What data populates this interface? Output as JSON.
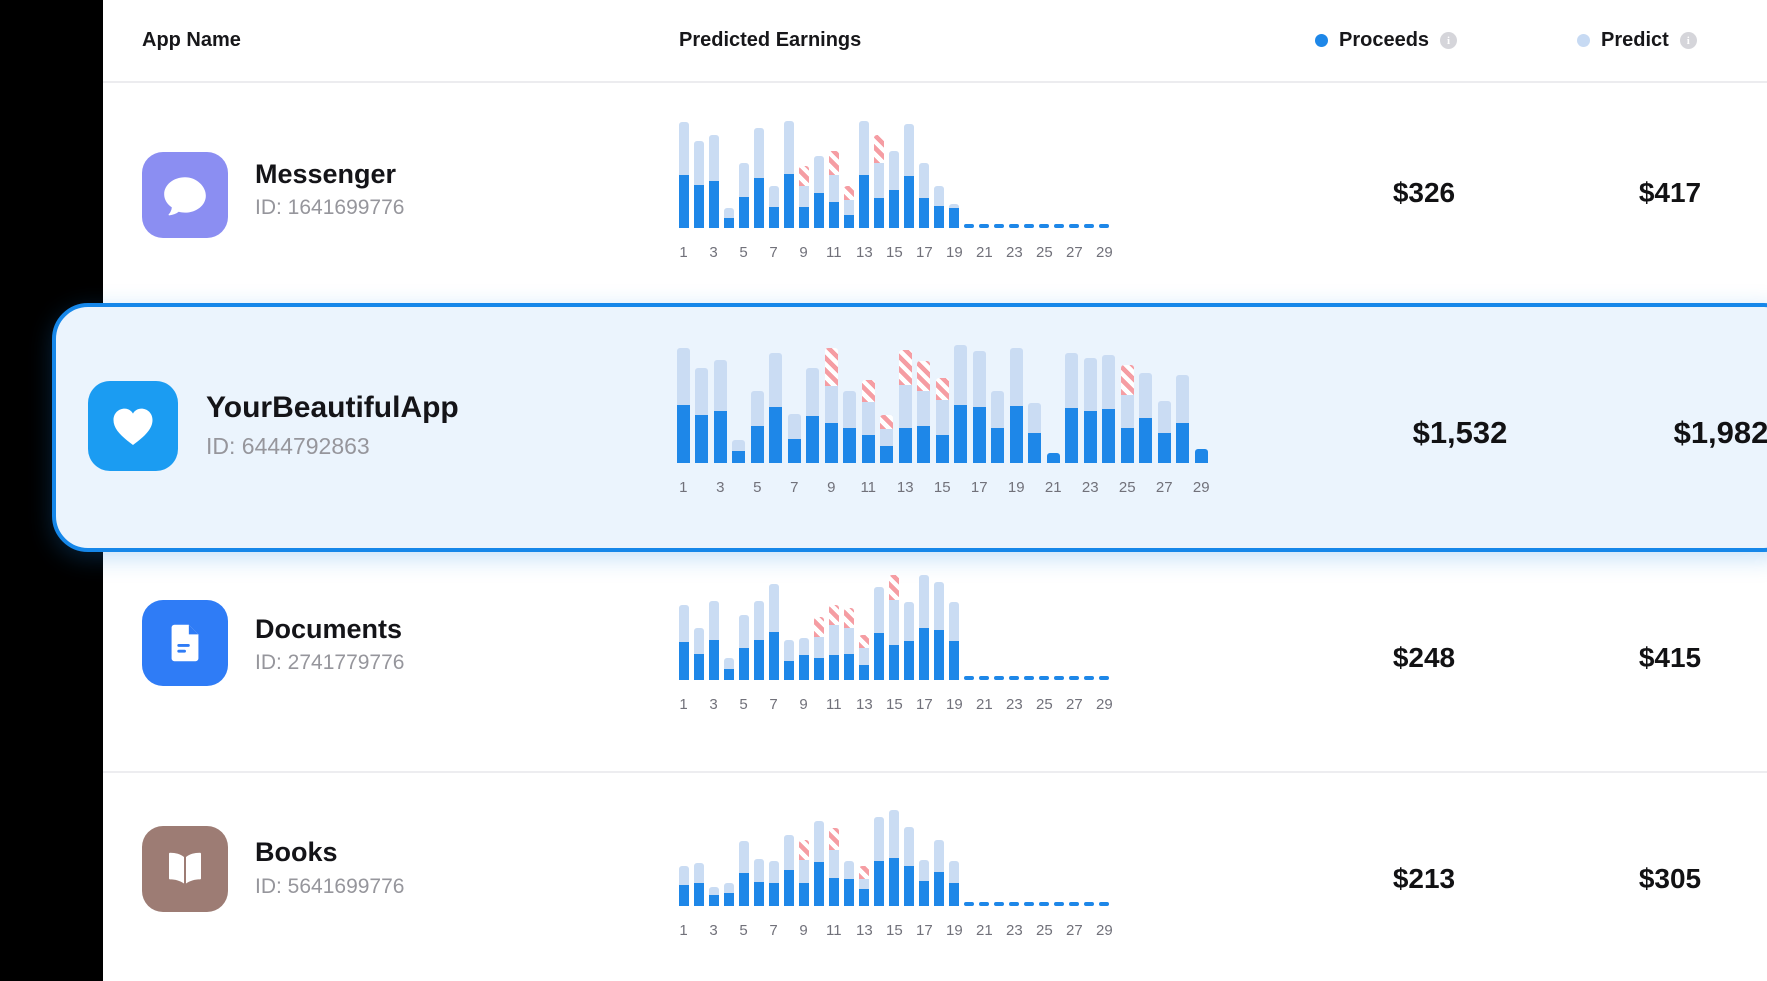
{
  "header": {
    "app_name": "App Name",
    "predicted_earnings": "Predicted Earnings"
  },
  "legend": {
    "proceeds": {
      "label": "Proceeds",
      "dot_color": "#1E87E8",
      "info_glyph": "i"
    },
    "predict": {
      "label": "Predict",
      "dot_color": "#C7DAF3",
      "info_glyph": "i"
    }
  },
  "colors": {
    "proceeds_bar": "#1E87E8",
    "predict_bar": "#CADCF3",
    "stripe_marker": "#F59DA3",
    "forecast_dash": "#1E87E8",
    "selected_border": "#1687E9",
    "selected_background": "#EBF4FD",
    "sidebar": "#000000"
  },
  "x_ticks": [
    "1",
    "3",
    "5",
    "7",
    "9",
    "11",
    "13",
    "15",
    "17",
    "19",
    "21",
    "23",
    "25",
    "27",
    "29"
  ],
  "bars_format": [
    "day",
    "predict_height",
    "proceeds_height",
    "stripe_height"
  ],
  "rows": [
    {
      "name": "Messenger",
      "id": "ID: 1641699776",
      "icon": "chat-bubble",
      "icon_color": "#8B8EF2",
      "proceeds": "$326",
      "predict": "$417",
      "selected": false,
      "chart": {
        "type": "stacked-bar",
        "dashed_from": 20,
        "bars": [
          [
            1,
            106,
            53,
            0
          ],
          [
            2,
            87,
            43,
            0
          ],
          [
            3,
            93,
            47,
            0
          ],
          [
            4,
            20,
            10,
            0
          ],
          [
            5,
            65,
            31,
            0
          ],
          [
            6,
            100,
            50,
            0
          ],
          [
            7,
            42,
            21,
            0
          ],
          [
            8,
            107,
            54,
            0
          ],
          [
            9,
            62,
            21,
            20
          ],
          [
            10,
            72,
            35,
            0
          ],
          [
            11,
            77,
            26,
            24
          ],
          [
            12,
            42,
            13,
            14
          ],
          [
            13,
            107,
            53,
            0
          ],
          [
            14,
            93,
            30,
            28
          ],
          [
            15,
            77,
            38,
            0
          ],
          [
            16,
            104,
            52,
            0
          ],
          [
            17,
            65,
            30,
            0
          ],
          [
            18,
            42,
            22,
            0
          ],
          [
            19,
            24,
            20,
            0
          ]
        ]
      }
    },
    {
      "name": "YourBeautifulApp",
      "id": "ID: 6444792863",
      "icon": "heart",
      "icon_color": "#1B9CF2",
      "proceeds": "$1,532",
      "predict": "$1,982",
      "selected": true,
      "chart": {
        "type": "stacked-bar",
        "dashed_from": null,
        "bars": [
          [
            1,
            115,
            58,
            0
          ],
          [
            2,
            95,
            48,
            0
          ],
          [
            3,
            103,
            52,
            0
          ],
          [
            4,
            23,
            12,
            0
          ],
          [
            5,
            72,
            37,
            0
          ],
          [
            6,
            110,
            56,
            0
          ],
          [
            7,
            49,
            24,
            0
          ],
          [
            8,
            95,
            47,
            0
          ],
          [
            9,
            115,
            40,
            38
          ],
          [
            10,
            72,
            35,
            0
          ],
          [
            11,
            83,
            28,
            22
          ],
          [
            12,
            48,
            17,
            14
          ],
          [
            13,
            113,
            35,
            35
          ],
          [
            14,
            102,
            37,
            30
          ],
          [
            15,
            85,
            28,
            22
          ],
          [
            16,
            118,
            58,
            0
          ],
          [
            17,
            112,
            56,
            0
          ],
          [
            18,
            72,
            35,
            0
          ],
          [
            19,
            115,
            57,
            0
          ],
          [
            20,
            60,
            30,
            0
          ],
          [
            21,
            10,
            10,
            0
          ],
          [
            22,
            110,
            55,
            0
          ],
          [
            23,
            105,
            52,
            0
          ],
          [
            24,
            108,
            54,
            0
          ],
          [
            25,
            98,
            35,
            30
          ],
          [
            26,
            90,
            45,
            0
          ],
          [
            27,
            62,
            30,
            0
          ],
          [
            28,
            88,
            40,
            0
          ],
          [
            29,
            14,
            14,
            0
          ]
        ]
      }
    },
    {
      "name": "Documents",
      "id": "ID: 2741779776",
      "icon": "document",
      "icon_color": "#2F7CF6",
      "proceeds": "$248",
      "predict": "$415",
      "selected": false,
      "chart": {
        "type": "stacked-bar",
        "dashed_from": 20,
        "bars": [
          [
            1,
            75,
            38,
            0
          ],
          [
            2,
            52,
            26,
            0
          ],
          [
            3,
            79,
            40,
            0
          ],
          [
            4,
            22,
            11,
            0
          ],
          [
            5,
            65,
            32,
            0
          ],
          [
            6,
            79,
            40,
            0
          ],
          [
            7,
            96,
            48,
            0
          ],
          [
            8,
            40,
            19,
            0
          ],
          [
            9,
            42,
            25,
            0
          ],
          [
            10,
            63,
            22,
            20
          ],
          [
            11,
            75,
            25,
            20
          ],
          [
            12,
            72,
            26,
            20
          ],
          [
            13,
            45,
            15,
            13
          ],
          [
            14,
            93,
            47,
            0
          ],
          [
            15,
            105,
            35,
            25
          ],
          [
            16,
            78,
            39,
            0
          ],
          [
            17,
            105,
            52,
            0
          ],
          [
            18,
            98,
            50,
            0
          ],
          [
            19,
            78,
            39,
            0
          ]
        ]
      }
    },
    {
      "name": "Books",
      "id": "ID: 5641699776",
      "icon": "open-book",
      "icon_color": "#9D7C74",
      "proceeds": "$213",
      "predict": "$305",
      "selected": false,
      "chart": {
        "type": "stacked-bar",
        "dashed_from": 20,
        "bars": [
          [
            1,
            40,
            21,
            0
          ],
          [
            2,
            43,
            23,
            0
          ],
          [
            3,
            19,
            11,
            0
          ],
          [
            4,
            23,
            13,
            0
          ],
          [
            5,
            65,
            33,
            0
          ],
          [
            6,
            47,
            24,
            0
          ],
          [
            7,
            45,
            23,
            0
          ],
          [
            8,
            71,
            36,
            0
          ],
          [
            9,
            66,
            23,
            20
          ],
          [
            10,
            85,
            44,
            0
          ],
          [
            11,
            78,
            28,
            22
          ],
          [
            12,
            45,
            27,
            0
          ],
          [
            13,
            40,
            17,
            13
          ],
          [
            14,
            89,
            45,
            0
          ],
          [
            15,
            96,
            48,
            0
          ],
          [
            16,
            79,
            40,
            0
          ],
          [
            17,
            46,
            25,
            0
          ],
          [
            18,
            66,
            34,
            0
          ],
          [
            19,
            45,
            23,
            0
          ]
        ]
      }
    }
  ]
}
